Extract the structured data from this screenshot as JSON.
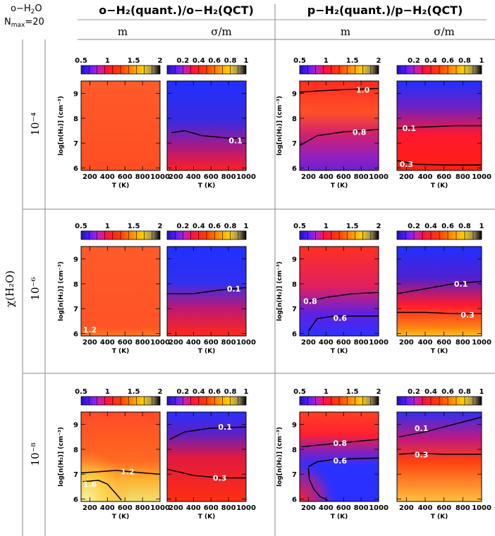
{
  "header": {
    "molecule": "o−H",
    "molecule_sub": "2",
    "molecule_end": "O",
    "nmax_label": "N",
    "nmax_sub": "max",
    "nmax_value": "=20",
    "col_group_left": "o−H₂(quant.)/o−H₂(QCT)",
    "col_group_right": "p−H₂(quant.)/p−H₂(QCT)",
    "sub_m": "m",
    "sub_sigma": "σ/m",
    "row_axis_label": "χ(H₂O)",
    "row_labels": [
      "10⁻⁴",
      "10⁻⁶",
      "10⁻⁸"
    ]
  },
  "chart_data": {
    "type": "heatmap",
    "xlabel": "T (K)",
    "ylabel": "log[n(H₂)] (cm⁻³)",
    "xlim": [
      100,
      1000
    ],
    "ylim": [
      5.9,
      9.5
    ],
    "xticks": [
      200,
      400,
      600,
      800,
      1000
    ],
    "yticks": [
      6,
      7,
      8,
      9
    ],
    "colorbars": {
      "m": {
        "range": [
          0.5,
          2
        ],
        "ticks": [
          "0.5",
          "1",
          "1.5",
          "2"
        ]
      },
      "sigma": {
        "range": [
          0,
          1
        ],
        "ticks": [
          "0.2",
          "0.4",
          "0.6",
          "0.8",
          "1"
        ]
      }
    },
    "panels": [
      {
        "row": "10⁻⁴",
        "col": "o-H2 m",
        "contours": []
      },
      {
        "row": "10⁻⁴",
        "col": "o-H2 σ/m",
        "contours": [
          {
            "level": "0.1",
            "points": [
              [
                150,
                7.42
              ],
              [
                300,
                7.5
              ],
              [
                500,
                7.3
              ],
              [
                800,
                7.2
              ],
              [
                1000,
                7.2
              ]
            ],
            "label_at": [
              880,
              7.1
            ]
          }
        ]
      },
      {
        "row": "10⁻⁴",
        "col": "p-H2 m",
        "contours": [
          {
            "level": "1.0",
            "points": [
              [
                100,
                9.05
              ],
              [
                300,
                9.1
              ],
              [
                600,
                9.15
              ],
              [
                1000,
                9.2
              ]
            ],
            "label_at": [
              820,
              9.15
            ]
          },
          {
            "level": "0.8",
            "points": [
              [
                100,
                6.9
              ],
              [
                200,
                7.1
              ],
              [
                300,
                7.3
              ],
              [
                600,
                7.45
              ],
              [
                1000,
                7.55
              ]
            ],
            "label_at": [
              780,
              7.45
            ]
          }
        ]
      },
      {
        "row": "10⁻⁴",
        "col": "p-H2 σ/m",
        "contours": [
          {
            "level": "0.1",
            "points": [
              [
                100,
                7.6
              ],
              [
                400,
                7.65
              ],
              [
                700,
                7.7
              ],
              [
                1000,
                7.7
              ]
            ],
            "label_at": [
              230,
              7.6
            ]
          },
          {
            "level": "0.3",
            "points": [
              [
                100,
                6.3
              ],
              [
                300,
                6.15
              ],
              [
                600,
                6.12
              ],
              [
                1000,
                6.12
              ]
            ],
            "label_at": [
              200,
              6.15
            ]
          }
        ]
      },
      {
        "row": "10⁻⁶",
        "col": "o-H2 m",
        "contours": [
          {
            "level": "1.2",
            "points": [],
            "label_at": [
              200,
              6.15
            ]
          }
        ]
      },
      {
        "row": "10⁻⁶",
        "col": "o-H2 σ/m",
        "contours": [
          {
            "level": "0.1",
            "points": [
              [
                100,
                7.6
              ],
              [
                400,
                7.6
              ],
              [
                700,
                7.75
              ],
              [
                1000,
                7.85
              ]
            ],
            "label_at": [
              860,
              7.8
            ]
          }
        ]
      },
      {
        "row": "10⁻⁶",
        "col": "p-H2 m",
        "contours": [
          {
            "level": "0.8",
            "points": [
              [
                200,
                7.3
              ],
              [
                400,
                7.45
              ],
              [
                700,
                7.6
              ],
              [
                1000,
                7.65
              ]
            ],
            "label_at": [
              220,
              7.3
            ]
          },
          {
            "level": "0.6",
            "points": [
              [
                200,
                6.1
              ],
              [
                300,
                6.6
              ],
              [
                500,
                6.7
              ],
              [
                1000,
                6.7
              ]
            ],
            "label_at": [
              560,
              6.62
            ]
          }
        ]
      },
      {
        "row": "10⁻⁶",
        "col": "p-H2 σ/m",
        "contours": [
          {
            "level": "0.1",
            "points": [
              [
                100,
                7.6
              ],
              [
                400,
                7.8
              ],
              [
                700,
                8.0
              ],
              [
                1000,
                8.1
              ]
            ],
            "label_at": [
              780,
              8.0
            ]
          },
          {
            "level": "0.3",
            "points": [
              [
                100,
                6.85
              ],
              [
                400,
                6.85
              ],
              [
                700,
                6.8
              ],
              [
                1000,
                6.8
              ]
            ],
            "label_at": [
              850,
              6.75
            ]
          }
        ]
      },
      {
        "row": "10⁻⁸",
        "col": "o-H2 m",
        "contours": [
          {
            "level": "1.2",
            "points": [
              [
                100,
                7.05
              ],
              [
                300,
                7.1
              ],
              [
                500,
                7.15
              ],
              [
                800,
                7.05
              ],
              [
                1000,
                7.0
              ]
            ],
            "label_at": [
              630,
              7.1
            ]
          },
          {
            "level": "1.6",
            "points": [
              [
                120,
                6.7
              ],
              [
                300,
                6.75
              ],
              [
                400,
                6.6
              ],
              [
                500,
                6.2
              ],
              [
                560,
                5.95
              ]
            ],
            "label_at": [
              200,
              6.6
            ]
          }
        ]
      },
      {
        "row": "10⁻⁸",
        "col": "o-H2 σ/m",
        "contours": [
          {
            "level": "0.1",
            "points": [
              [
                130,
                8.4
              ],
              [
                300,
                8.7
              ],
              [
                600,
                8.85
              ],
              [
                1000,
                8.9
              ]
            ],
            "label_at": [
              760,
              8.9
            ]
          },
          {
            "level": "0.3",
            "points": [
              [
                100,
                7.2
              ],
              [
                400,
                6.95
              ],
              [
                700,
                6.85
              ],
              [
                1000,
                6.85
              ]
            ],
            "label_at": [
              700,
              6.85
            ]
          }
        ]
      },
      {
        "row": "10⁻⁸",
        "col": "p-H2 m",
        "contours": [
          {
            "level": "0.8",
            "points": [
              [
                120,
                8.1
              ],
              [
                400,
                8.2
              ],
              [
                700,
                8.3
              ],
              [
                1000,
                8.4
              ]
            ],
            "label_at": [
              560,
              8.25
            ]
          },
          {
            "level": "0.6",
            "points": [
              [
                200,
                7.3
              ],
              [
                300,
                7.5
              ],
              [
                500,
                7.6
              ],
              [
                1000,
                7.65
              ]
            ],
            "label_at": [
              560,
              7.55
            ]
          },
          {
            "level": "",
            "points": [
              [
                200,
                7.25
              ],
              [
                210,
                6.8
              ],
              [
                260,
                6.4
              ],
              [
                330,
                6.1
              ],
              [
                420,
                5.95
              ]
            ],
            "label_at": null
          }
        ]
      },
      {
        "row": "10⁻⁸",
        "col": "p-H2 σ/m",
        "contours": [
          {
            "level": "0.1",
            "points": [
              [
                120,
                8.5
              ],
              [
                400,
                8.7
              ],
              [
                700,
                9.0
              ],
              [
                1000,
                9.3
              ]
            ],
            "label_at": [
              360,
              8.85
            ]
          },
          {
            "level": "0.3",
            "points": [
              [
                120,
                7.8
              ],
              [
                300,
                7.85
              ],
              [
                600,
                7.8
              ],
              [
                1000,
                7.8
              ]
            ],
            "label_at": [
              360,
              7.78
            ]
          }
        ]
      }
    ]
  },
  "colors": {
    "blue": "#2a2aff",
    "red": "#ff2c1a",
    "orange": "#ff6a00",
    "yellow": "#ffd84a",
    "orange_red": "#ff5a2a"
  }
}
